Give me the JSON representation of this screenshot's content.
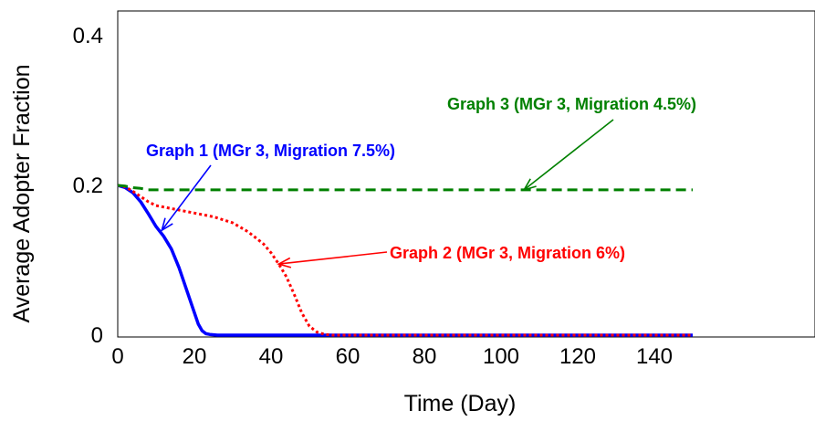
{
  "chart_data": {
    "type": "line",
    "xlabel": "Time (Day)",
    "ylabel": "Average Adopter Fraction",
    "xlim": [
      0,
      150
    ],
    "ylim": [
      0,
      0.4
    ],
    "x_ticks": [
      "0",
      "20",
      "40",
      "60",
      "80",
      "100",
      "120",
      "140"
    ],
    "y_ticks": [
      "0",
      "0.2",
      "0.4"
    ],
    "grid": false,
    "series": [
      {
        "color": "#0000ff",
        "line_style": "solid",
        "x": [
          0,
          2,
          4,
          6,
          8,
          10,
          12,
          14,
          16,
          18,
          20,
          21,
          22,
          23,
          24,
          26,
          30,
          40,
          60,
          80,
          100,
          120,
          150
        ],
        "y": [
          0.2,
          0.197,
          0.19,
          0.178,
          0.162,
          0.145,
          0.132,
          0.115,
          0.09,
          0.06,
          0.03,
          0.015,
          0.006,
          0.002,
          0.001,
          0.0,
          0.0,
          0.0,
          0.0,
          0.0,
          0.0,
          0.0,
          0.0
        ]
      },
      {
        "color": "#ff0000",
        "line_style": "dotted",
        "x": [
          0,
          2,
          4,
          6,
          8,
          10,
          15,
          20,
          25,
          30,
          34,
          38,
          40,
          42,
          44,
          46,
          48,
          50,
          52,
          54,
          56,
          60,
          80,
          100,
          120,
          150
        ],
        "y": [
          0.2,
          0.198,
          0.192,
          0.185,
          0.178,
          0.173,
          0.168,
          0.163,
          0.158,
          0.15,
          0.138,
          0.122,
          0.11,
          0.095,
          0.078,
          0.055,
          0.03,
          0.012,
          0.004,
          0.001,
          0.0,
          0.0,
          0.0,
          0.0,
          0.0,
          0.0
        ]
      },
      {
        "color": "#008000",
        "line_style": "dashed",
        "x": [
          0,
          2,
          4,
          6,
          8,
          10,
          20,
          40,
          60,
          80,
          100,
          120,
          150
        ],
        "y": [
          0.2,
          0.199,
          0.197,
          0.196,
          0.194,
          0.194,
          0.194,
          0.194,
          0.194,
          0.194,
          0.194,
          0.194,
          0.194
        ]
      }
    ],
    "annotations": [
      {
        "text": "Graph 3 (MGr 3, Migration 4.5%)",
        "color": "#008000",
        "arrow": "down",
        "point": [
          106,
          0.194
        ]
      },
      {
        "text": "Graph 1 (MGr 3, Migration 7.5%)",
        "color": "#0000ff",
        "arrow": "diagonal",
        "point": [
          11.5,
          0.14
        ]
      },
      {
        "text": "Graph 2 (MGr 3, Migration 6%)",
        "color": "#ff0000",
        "arrow": "left",
        "point": [
          42,
          0.095
        ]
      }
    ]
  }
}
